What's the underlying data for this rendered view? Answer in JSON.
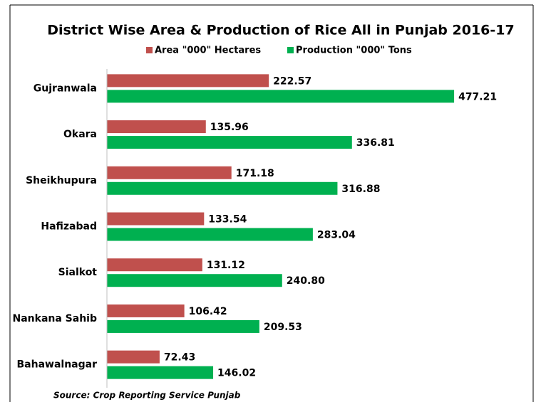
{
  "chart_data": {
    "type": "bar",
    "orientation": "horizontal",
    "title": "District Wise Area & Production of Rice All in Punjab 2016-17",
    "source": "Source: Crop Reporting Service Punjab",
    "categories": [
      "Gujranwala",
      "Okara",
      "Sheikhupura",
      "Hafizabad",
      "Sialkot",
      "Nankana Sahib",
      "Bahawalnagar"
    ],
    "series": [
      {
        "name": "Area \"000\" Hectares",
        "color": "#c0504d",
        "values": [
          222.57,
          135.96,
          171.18,
          133.54,
          131.12,
          106.42,
          72.43
        ],
        "value_labels": [
          "222.57",
          "135.96",
          "171.18",
          "133.54",
          "131.12",
          "106.42",
          "72.43"
        ]
      },
      {
        "name": "Production \"000\" Tons",
        "color": "#00b050",
        "values": [
          477.21,
          336.81,
          316.88,
          283.04,
          240.8,
          209.53,
          146.02
        ],
        "value_labels": [
          "477.21",
          "336.81",
          "316.88",
          "283.04",
          "240.80",
          "209.53",
          "146.02"
        ]
      }
    ],
    "xlim": [
      0,
      580
    ],
    "legend": "top"
  }
}
